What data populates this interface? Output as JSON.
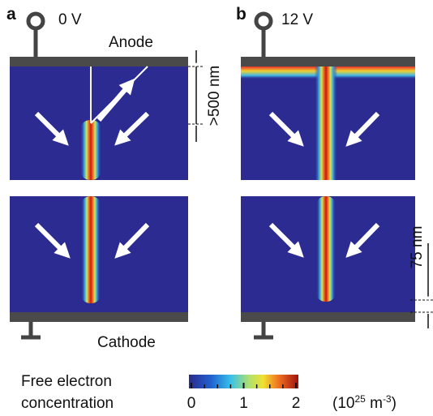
{
  "panel_a": {
    "label": "a",
    "voltage": "0 V",
    "electrode_top": "Anode",
    "distance": ">500 nm",
    "electrode_bottom": "Cathode"
  },
  "panel_b": {
    "label": "b",
    "voltage": "12 V",
    "distance": "75 nm"
  },
  "colorbar": {
    "title_line1": "Free electron",
    "title_line2": "concentration",
    "range": [
      0,
      2
    ],
    "ticks": [
      0,
      1,
      2
    ],
    "minor_ticks": [
      0.25,
      0.5,
      0.75,
      1.25,
      1.5,
      1.75
    ],
    "unit": {
      "open": "(10",
      "exp": "25",
      "mid": " m",
      "exp2": "-3",
      "close": ")"
    }
  }
}
